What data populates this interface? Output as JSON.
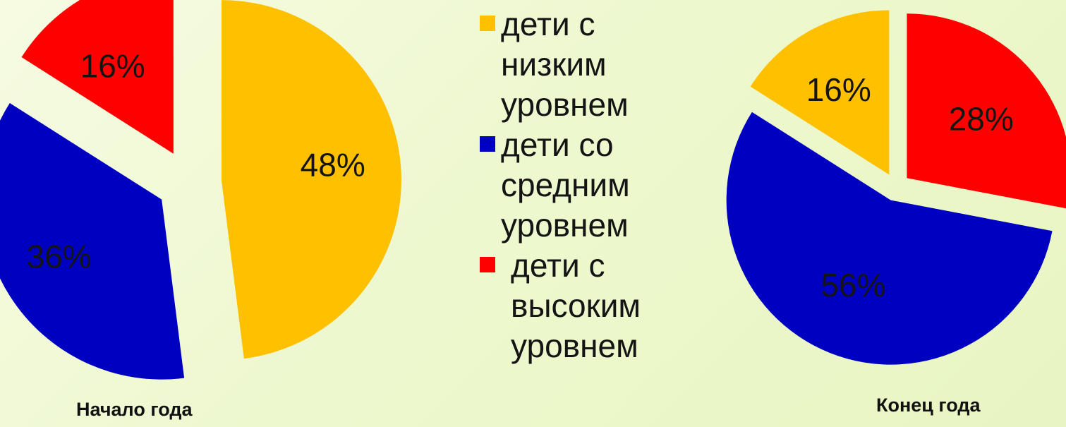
{
  "legend": {
    "items": [
      {
        "label": "дети с\nнизким\nуровнем",
        "color": "#FFC000"
      },
      {
        "label": "дети со\nсредним\nуровнем",
        "color": "#0000C0"
      },
      {
        "label": "дети с\nвысоким\nуровнем",
        "color": "#FF0000"
      }
    ]
  },
  "chart_data": [
    {
      "type": "pie",
      "title": "Начало года",
      "categories": [
        "дети с низким уровнем",
        "дети со средним уровнем",
        "дети с высоким уровнем"
      ],
      "values": [
        48,
        36,
        16
      ],
      "labels": [
        "48%",
        "36%",
        "16%"
      ],
      "colors": [
        "#FFC000",
        "#0000C0",
        "#FF0000"
      ],
      "exploded": true,
      "legend": "center"
    },
    {
      "type": "pie",
      "title": "Конец года",
      "categories": [
        "дети с низким уровнем",
        "дети со средним уровнем",
        "дети с высоким уровнем"
      ],
      "values": [
        16,
        56,
        28
      ],
      "labels": [
        "16%",
        "56%",
        "28%"
      ],
      "colors": [
        "#FFC000",
        "#0000C0",
        "#FF0000"
      ],
      "exploded": true,
      "legend": "center"
    }
  ]
}
